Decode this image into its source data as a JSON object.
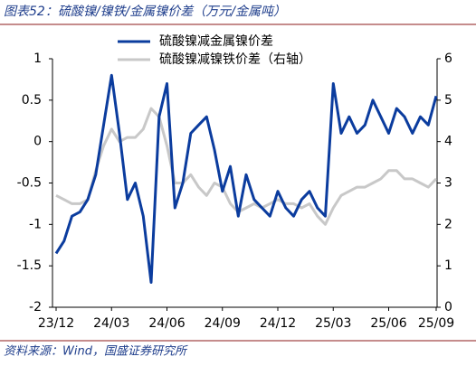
{
  "chart_data": {
    "type": "line",
    "title": "图表52：硫酸镍/镍铁/金属镍价差（万元/金属吨）",
    "source": "资料来源：Wind，国盛证券研究所",
    "categories": [
      "23/12",
      null,
      null,
      null,
      null,
      null,
      null,
      "24/03",
      null,
      null,
      null,
      null,
      null,
      null,
      "24/06",
      null,
      null,
      null,
      null,
      null,
      null,
      "24/09",
      null,
      null,
      null,
      null,
      null,
      null,
      "24/12",
      null,
      null,
      null,
      null,
      null,
      null,
      "25/03",
      null,
      null,
      null,
      null,
      null,
      null,
      "25/06",
      null,
      null,
      null,
      null,
      null,
      "25/09"
    ],
    "series": [
      {
        "name": "硫酸镍减金属镍价差",
        "color": "#0b3c9e",
        "axis": "y",
        "values": [
          -1.35,
          -1.2,
          -0.9,
          -0.85,
          -0.7,
          -0.4,
          0.2,
          0.8,
          0.1,
          -0.7,
          -0.5,
          -0.9,
          -1.7,
          0.3,
          0.7,
          -0.8,
          -0.5,
          0.1,
          0.2,
          0.3,
          -0.1,
          -0.6,
          -0.3,
          -0.9,
          -0.4,
          -0.7,
          -0.8,
          -0.9,
          -0.6,
          -0.8,
          -0.9,
          -0.7,
          -0.6,
          -0.8,
          -0.9,
          0.7,
          0.1,
          0.3,
          0.1,
          0.2,
          0.5,
          0.3,
          0.1,
          0.4,
          0.3,
          0.1,
          0.3,
          0.2,
          0.55
        ]
      },
      {
        "name": "硫酸镍减镍铁价差（右轴）",
        "color": "#c8c8c8",
        "axis": "y2",
        "values": [
          2.7,
          2.6,
          2.5,
          2.5,
          2.6,
          3.3,
          3.9,
          4.3,
          4.0,
          4.1,
          4.1,
          4.3,
          4.8,
          4.6,
          3.9,
          3.0,
          3.0,
          3.2,
          2.9,
          2.7,
          3.0,
          2.9,
          2.5,
          2.3,
          2.4,
          2.5,
          2.4,
          2.5,
          2.6,
          2.5,
          2.5,
          2.4,
          2.5,
          2.2,
          2.0,
          2.4,
          2.7,
          2.8,
          2.9,
          2.9,
          3.0,
          3.1,
          3.3,
          3.3,
          3.1,
          3.1,
          3.0,
          2.9,
          3.1
        ]
      }
    ],
    "ylim": [
      -2,
      1
    ],
    "yticks": [
      -2,
      -1.5,
      -1,
      -0.5,
      0,
      0.5,
      1
    ],
    "y2lim": [
      0,
      6
    ],
    "y2ticks": [
      0,
      1,
      2,
      3,
      4,
      5,
      6
    ]
  }
}
